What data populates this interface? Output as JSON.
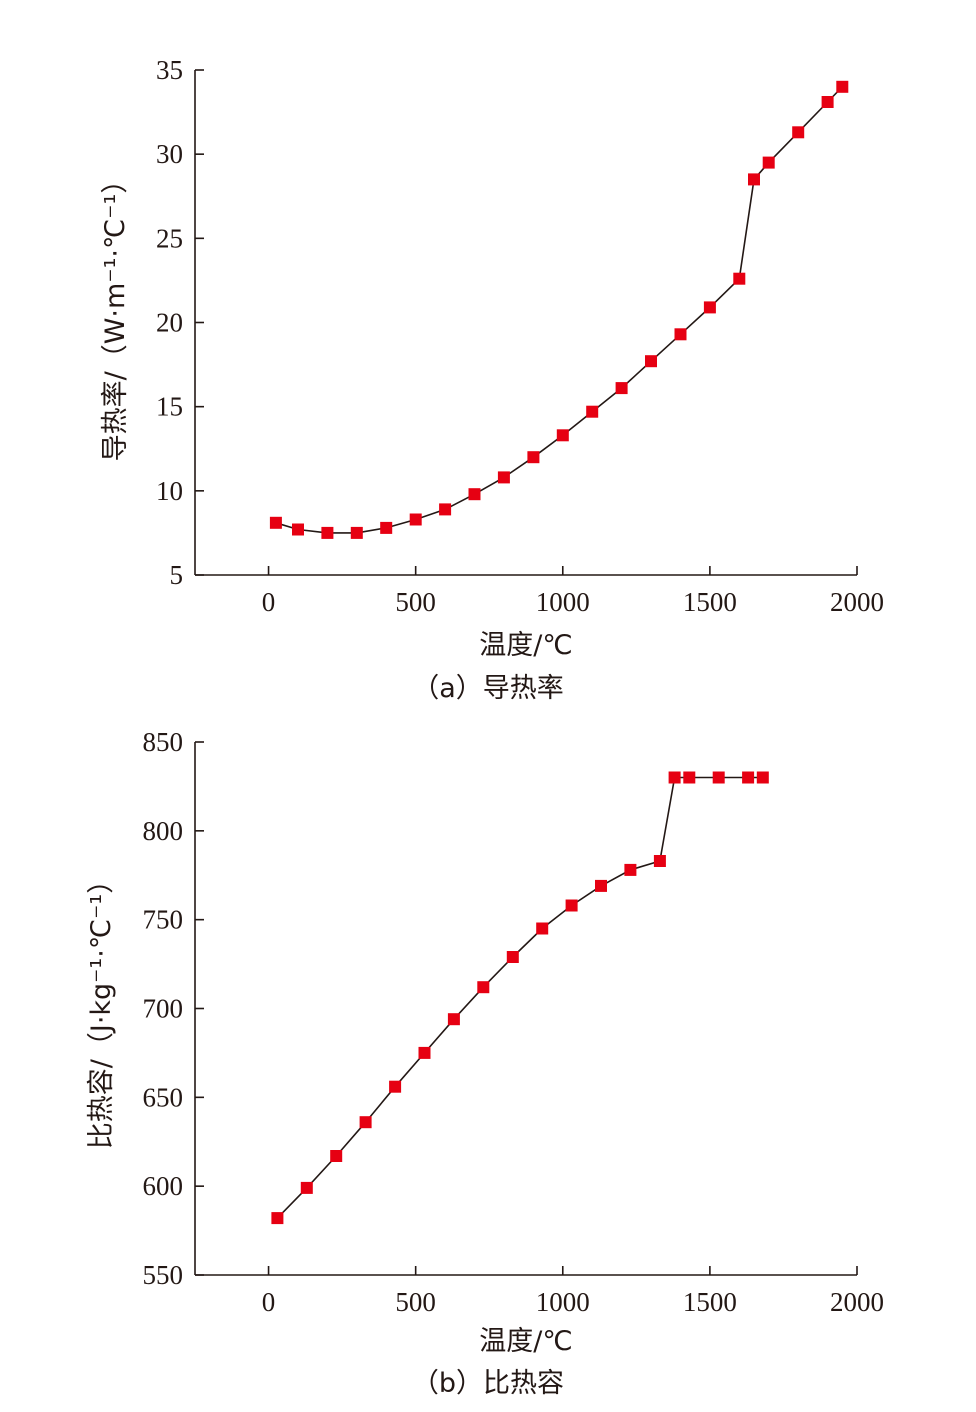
{
  "colors": {
    "marker": "#e60012",
    "line": "#231815",
    "axis": "#231815"
  },
  "chart_data": [
    {
      "type": "line",
      "caption": "（a）导热率",
      "xlabel": "温度/℃",
      "ylabel": "导热率/（W·m⁻¹·℃⁻¹）",
      "xlim": [
        -250,
        2000
      ],
      "ylim": [
        5,
        35
      ],
      "xticks": [
        0,
        500,
        1000,
        1500,
        2000
      ],
      "yticks": [
        5,
        10,
        15,
        20,
        25,
        30,
        35
      ],
      "marker": "square",
      "series": [
        {
          "x": [
            25,
            100,
            200,
            300,
            400,
            500,
            600,
            700,
            800,
            900,
            1000,
            1100,
            1200,
            1300,
            1400,
            1500,
            1600,
            1650,
            1700,
            1800,
            1900,
            1950
          ],
          "y": [
            8.1,
            7.7,
            7.5,
            7.5,
            7.8,
            8.3,
            8.9,
            9.8,
            10.8,
            12.0,
            13.3,
            14.7,
            16.1,
            17.7,
            19.3,
            20.9,
            22.6,
            28.5,
            29.5,
            31.3,
            33.1,
            34.0
          ]
        }
      ]
    },
    {
      "type": "line",
      "caption": "（b）比热容",
      "xlabel": "温度/℃",
      "ylabel": "比热容/（J·kg⁻¹·℃⁻¹）",
      "xlim": [
        -250,
        2000
      ],
      "ylim": [
        550,
        850
      ],
      "xticks": [
        0,
        500,
        1000,
        1500,
        2000
      ],
      "yticks": [
        550,
        600,
        650,
        700,
        750,
        800,
        850
      ],
      "marker": "square",
      "series": [
        {
          "x": [
            30,
            130,
            230,
            330,
            430,
            530,
            630,
            730,
            830,
            930,
            1030,
            1130,
            1230,
            1330,
            1380,
            1430,
            1530,
            1630,
            1680
          ],
          "y": [
            582,
            599,
            617,
            636,
            656,
            675,
            694,
            712,
            729,
            745,
            758,
            769,
            778,
            783,
            830,
            830,
            830,
            830,
            830
          ]
        }
      ]
    }
  ]
}
